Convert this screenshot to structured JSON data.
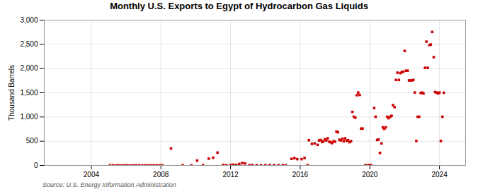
{
  "chart_data": {
    "type": "scatter",
    "title": "Monthly U.S. Exports to Egypt of Hydrocarbon Gas Liquids",
    "ylabel": "Thousand Barrels",
    "source": "Source: U.S. Energy Information Administration",
    "color": "#cc0000",
    "marker": "square",
    "grid": true,
    "xlim": [
      2001.3,
      2025.5
    ],
    "xticks": [
      2004,
      2008,
      2012,
      2016,
      2020,
      2024
    ],
    "ylim": [
      0,
      3000
    ],
    "yticks": [
      0,
      500,
      {
        "value": 1000,
        "label": "1,000"
      },
      {
        "value": 1500,
        "label": "1,500"
      },
      {
        "value": 2000,
        "label": "2,000"
      },
      {
        "value": 2500,
        "label": "2,500"
      },
      {
        "value": 3000,
        "label": "3,000"
      }
    ],
    "x": [
      2005.08,
      2005.25,
      2005.42,
      2005.58,
      2005.75,
      2005.92,
      2006.08,
      2006.25,
      2006.42,
      2006.58,
      2006.75,
      2006.92,
      2007.08,
      2007.25,
      2007.42,
      2007.58,
      2007.75,
      2007.92,
      2008.08,
      2008.58,
      2009.25,
      2009.75,
      2010.08,
      2010.42,
      2010.75,
      2011.0,
      2011.25,
      2011.58,
      2011.75,
      2012.0,
      2012.08,
      2012.17,
      2012.33,
      2012.5,
      2012.67,
      2012.83,
      2013.08,
      2013.25,
      2013.5,
      2013.75,
      2014.0,
      2014.25,
      2014.5,
      2014.75,
      2015.0,
      2015.17,
      2015.5,
      2015.67,
      2015.83,
      2016.08,
      2016.25,
      2016.42,
      2016.5,
      2016.67,
      2016.83,
      2017.0,
      2017.08,
      2017.17,
      2017.25,
      2017.33,
      2017.42,
      2017.5,
      2017.58,
      2017.67,
      2017.75,
      2017.83,
      2017.92,
      2018.0,
      2018.08,
      2018.17,
      2018.25,
      2018.33,
      2018.42,
      2018.5,
      2018.58,
      2018.67,
      2018.75,
      2018.83,
      2018.92,
      2019.0,
      2019.08,
      2019.17,
      2019.25,
      2019.33,
      2019.42,
      2019.5,
      2019.58,
      2019.75,
      2019.92,
      2020.0,
      2020.08,
      2020.25,
      2020.33,
      2020.42,
      2020.5,
      2020.58,
      2020.67,
      2020.75,
      2020.83,
      2020.92,
      2021.0,
      2021.08,
      2021.17,
      2021.25,
      2021.33,
      2021.42,
      2021.5,
      2021.58,
      2021.67,
      2021.75,
      2021.83,
      2021.92,
      2022.0,
      2022.08,
      2022.17,
      2022.25,
      2022.33,
      2022.42,
      2022.5,
      2022.58,
      2022.67,
      2022.75,
      2022.83,
      2022.92,
      2023.0,
      2023.08,
      2023.17,
      2023.25,
      2023.33,
      2023.42,
      2023.5,
      2023.58,
      2023.67,
      2023.75,
      2023.83,
      2023.92,
      2024.0,
      2024.08,
      2024.17,
      2024.25
    ],
    "values": [
      3,
      2,
      1,
      2,
      1,
      2,
      2,
      1,
      2,
      1,
      3,
      1,
      2,
      2,
      1,
      2,
      3,
      2,
      2,
      350,
      2,
      2,
      100,
      5,
      140,
      160,
      265,
      10,
      5,
      10,
      5,
      15,
      10,
      30,
      50,
      40,
      5,
      10,
      5,
      5,
      5,
      8,
      5,
      5,
      3,
      3,
      135,
      150,
      130,
      130,
      155,
      5,
      520,
      445,
      455,
      425,
      515,
      525,
      485,
      500,
      540,
      515,
      560,
      490,
      480,
      460,
      500,
      490,
      700,
      685,
      530,
      515,
      550,
      500,
      560,
      510,
      520,
      480,
      500,
      1105,
      1005,
      985,
      1450,
      1505,
      1455,
      760,
      760,
      5,
      5,
      5,
      5,
      1185,
      1005,
      525,
      535,
      258,
      455,
      785,
      755,
      785,
      1005,
      975,
      1005,
      1025,
      1245,
      1205,
      1765,
      1915,
      1765,
      1905,
      1925,
      1935,
      2365,
      1955,
      1955,
      1755,
      1755,
      1755,
      1765,
      1505,
      505,
      1005,
      1005,
      1495,
      1505,
      1485,
      2015,
      2555,
      2015,
      2485,
      2495,
      2755,
      2235,
      1515,
      1505,
      1485,
      1505,
      505,
      1005,
      1500
    ]
  }
}
